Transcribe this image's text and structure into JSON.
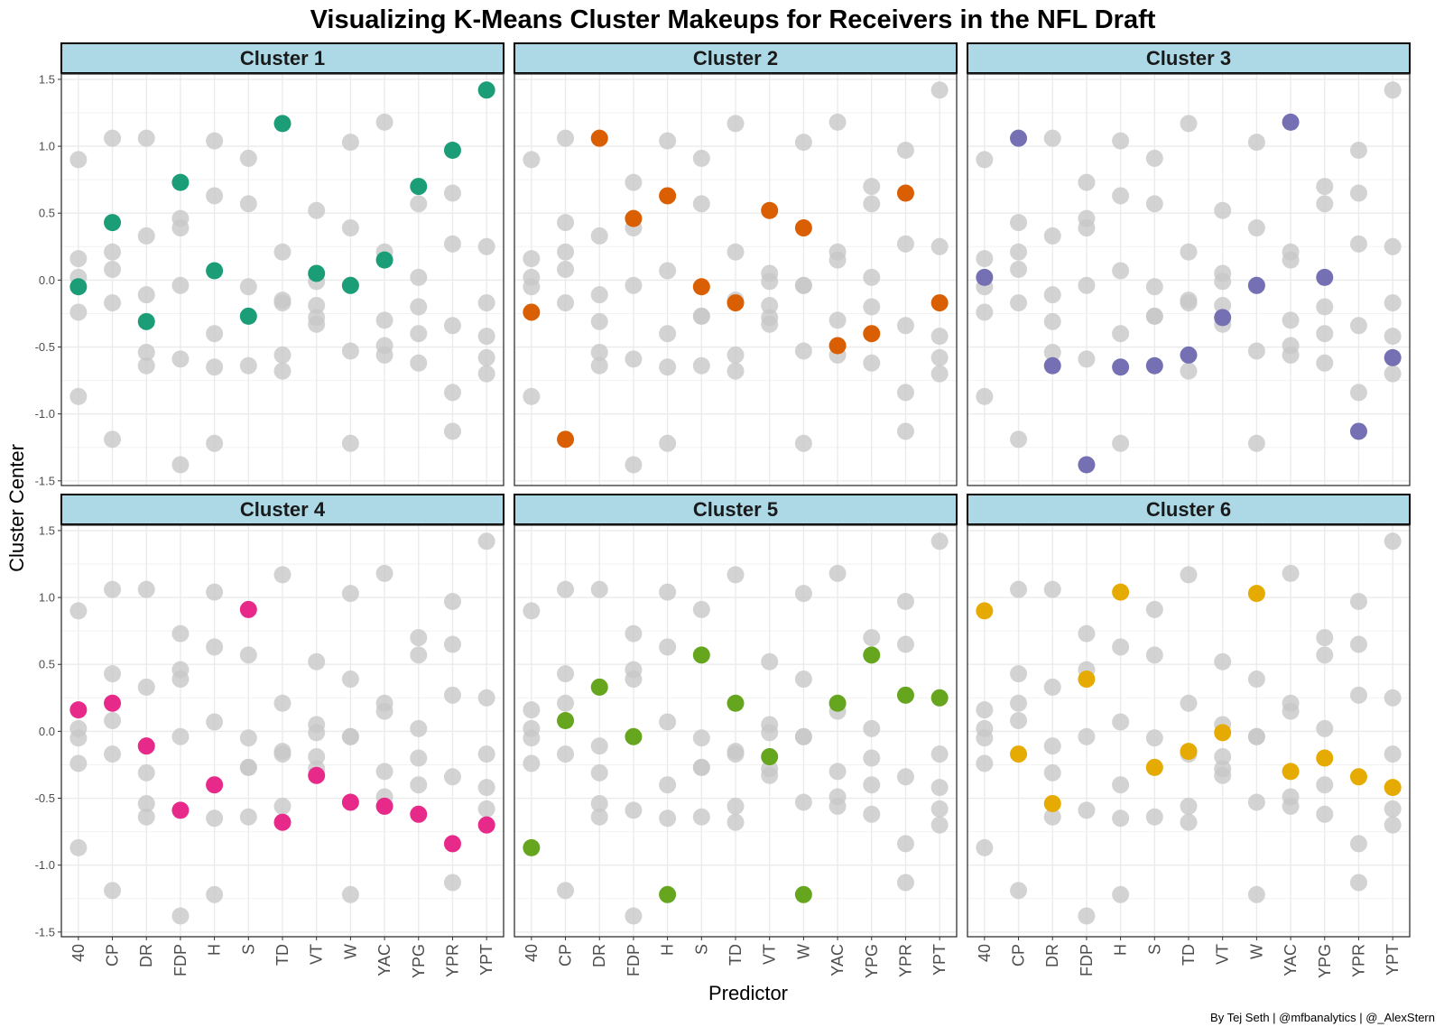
{
  "chart_data": {
    "type": "scatter",
    "title": "Visualizing K-Means Cluster Makeups for Receivers in the NFL Draft",
    "xlabel": "Predictor",
    "ylabel": "Cluster Center",
    "caption": "By Tej Seth | @mfbanalytics | @_AlexStern",
    "ylim": [
      -1.5,
      1.5
    ],
    "yticks": [
      -1.5,
      -1.0,
      -0.5,
      0.0,
      0.5,
      1.0,
      1.5
    ],
    "ytick_labels": [
      "-1.5",
      "-1.0",
      "-0.5",
      "0.0",
      "0.5",
      "1.0",
      "1.5"
    ],
    "predictors": [
      "40",
      "CP",
      "DR",
      "FDP",
      "H",
      "S",
      "TD",
      "VT",
      "W",
      "YAC",
      "YPG",
      "YPR",
      "YPT"
    ],
    "background_color": "#c8c8c8",
    "strip_fill": "#add8e6",
    "grid": true,
    "clusters": [
      {
        "name": "Cluster 1",
        "color": "#1b9e77",
        "values": [
          -0.05,
          0.43,
          -0.31,
          0.73,
          0.07,
          -0.27,
          1.17,
          0.05,
          -0.04,
          0.15,
          0.7,
          0.97,
          1.42
        ]
      },
      {
        "name": "Cluster 2",
        "color": "#d95f02",
        "values": [
          -0.24,
          -1.19,
          1.06,
          0.46,
          0.63,
          -0.05,
          -0.17,
          0.52,
          0.39,
          -0.49,
          -0.4,
          0.65,
          -0.17
        ]
      },
      {
        "name": "Cluster 3",
        "color": "#7570b3",
        "values": [
          0.02,
          1.06,
          -0.64,
          -1.38,
          -0.65,
          -0.64,
          -0.56,
          -0.28,
          -0.04,
          1.18,
          0.02,
          -1.13,
          -0.58
        ]
      },
      {
        "name": "Cluster 4",
        "color": "#e7298a",
        "values": [
          0.16,
          0.21,
          -0.11,
          -0.59,
          -0.4,
          0.91,
          -0.68,
          -0.33,
          -0.53,
          -0.56,
          -0.62,
          -0.84,
          -0.7
        ]
      },
      {
        "name": "Cluster 5",
        "color": "#66a61e",
        "values": [
          -0.87,
          0.08,
          0.33,
          -0.04,
          -1.22,
          0.57,
          0.21,
          -0.19,
          -1.22,
          0.21,
          0.57,
          0.27,
          0.25
        ]
      },
      {
        "name": "Cluster 6",
        "color": "#e6ab02",
        "values": [
          0.9,
          -0.17,
          -0.54,
          0.39,
          1.04,
          -0.27,
          -0.15,
          -0.01,
          1.03,
          -0.3,
          -0.2,
          -0.34,
          -0.42
        ]
      }
    ]
  }
}
